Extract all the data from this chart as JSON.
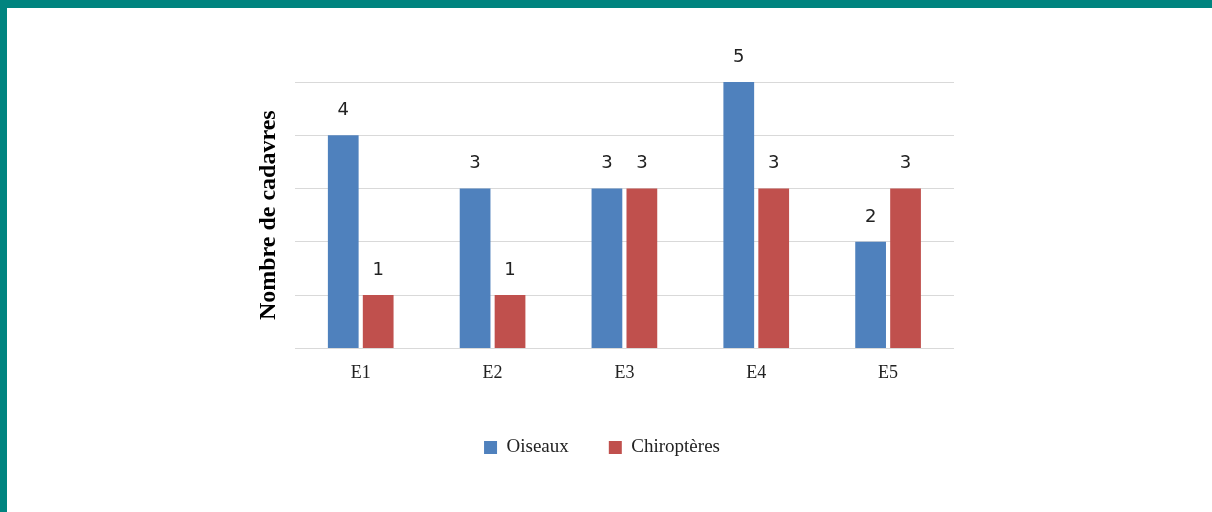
{
  "chart_data": {
    "type": "bar",
    "ylabel": "Nombre de cadavres",
    "categories": [
      "E1",
      "E2",
      "E3",
      "E4",
      "E5"
    ],
    "series": [
      {
        "name": "Oiseaux",
        "color": "#4f81bd",
        "values": [
          4,
          3,
          3,
          5,
          2
        ]
      },
      {
        "name": "Chiroptères",
        "color": "#c0504d",
        "values": [
          1,
          1,
          3,
          3,
          3
        ]
      }
    ],
    "ylim": [
      0,
      5
    ],
    "yticks": [
      {
        "value": 0,
        "label": null
      },
      {
        "value": 1,
        "label": null
      },
      {
        "value": 2,
        "label": null
      },
      {
        "value": 3,
        "label": null
      },
      {
        "value": 4,
        "label": null
      },
      {
        "value": 5,
        "label": null
      }
    ],
    "tick_labels": "x",
    "grid": "y",
    "legend": "bottom",
    "data_labels": true
  }
}
